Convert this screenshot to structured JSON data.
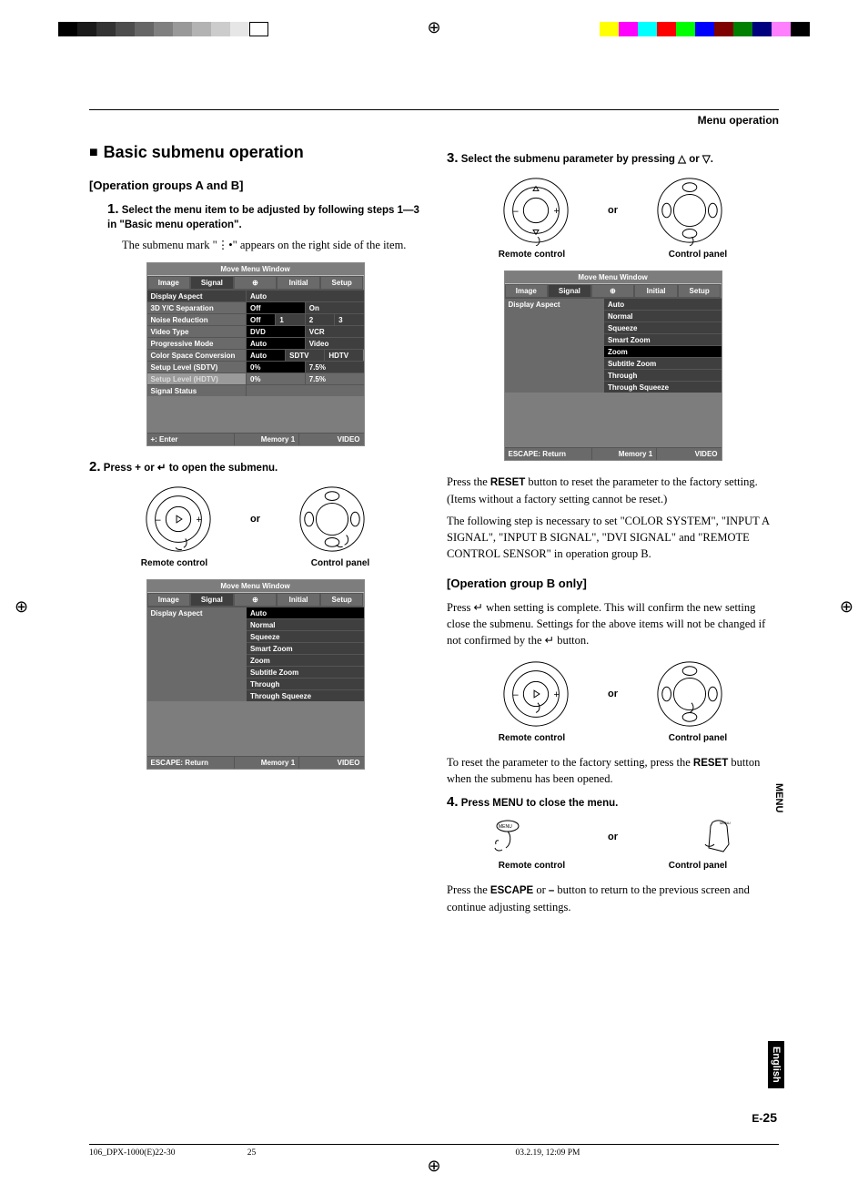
{
  "colorBarLeft": [
    "#000000",
    "#1a1a1a",
    "#333333",
    "#4d4d4d",
    "#666666",
    "#808080",
    "#999999",
    "#b3b3b3",
    "#cccccc",
    "#e6e6e6",
    "#ffffff"
  ],
  "colorBarRight": [
    "#ffff00",
    "#ff00ff",
    "#00ffff",
    "#ff0000",
    "#00ff00",
    "#0000ff",
    "#7f0000",
    "#007f00",
    "#00007f",
    "#ff7fff",
    "#000000"
  ],
  "header": {
    "section": "Menu operation"
  },
  "title": "Basic submenu operation",
  "groupA": "[Operation groups A and B]",
  "groupB": "[Operation group B only]",
  "step1": {
    "num": "1.",
    "txt": "Select the menu item to be adjusted by following steps 1—3 in \"Basic menu operation\"."
  },
  "step1_body": "The submenu mark \"⋮•\" appears on the right side of the item.",
  "step2": {
    "num": "2.",
    "txt": "Press + or ↵ to open the submenu."
  },
  "step3": {
    "num": "3.",
    "txt": "Select the submenu parameter by pressing △ or ▽."
  },
  "step3_body1_a": "Press the ",
  "step3_body1_b": "RESET",
  "step3_body1_c": " button to reset the parameter to the factory setting. (Items without a factory setting cannot be reset.)",
  "step3_body2": "The following step is necessary to set \"COLOR SYSTEM\", \"INPUT A SIGNAL\", \"INPUT B SIGNAL\", \"DVI SIGNAL\" and \"REMOTE CONTROL SENSOR\" in operation group B.",
  "groupB_body": "Press ↵ when setting is complete. This will confirm the new setting close the submenu. Settings for the above items will not be changed if not confirmed by the ↵ button.",
  "groupB_reset_a": "To reset the parameter to the factory setting, press the ",
  "groupB_reset_b": "RESET",
  "groupB_reset_c": " button when the submenu has been opened.",
  "step4": {
    "num": "4.",
    "txt": "Press MENU to close the menu."
  },
  "step4_body_a": "Press the ",
  "step4_body_b": "ESCAPE",
  "step4_body_c": " or ",
  "step4_body_d": "–",
  "step4_body_e": " button to return to the previous screen and continue adjusting settings.",
  "or": "or",
  "ctrl": {
    "remote": "Remote control",
    "panel": "Control panel"
  },
  "osd": {
    "title": "Move Menu Window",
    "tabs": [
      "Image",
      "Signal",
      "⊕",
      "Initial",
      "Setup"
    ],
    "activeTab": 1,
    "foot_enter": "+: Enter",
    "foot_escape": "ESCAPE: Return",
    "foot_mem": "Memory 1",
    "foot_vid": "VIDEO",
    "menu1_rows": [
      {
        "label": "Display Aspect",
        "hl": true,
        "cells": [
          {
            "t": "Auto",
            "on": false
          }
        ]
      },
      {
        "label": "3D Y/C Separation",
        "cells": [
          {
            "t": "Off",
            "on": true
          },
          {
            "t": "On"
          }
        ]
      },
      {
        "label": "Noise Reduction",
        "cells": [
          {
            "t": "Off",
            "on": true
          },
          {
            "t": "1"
          },
          {
            "t": "2"
          },
          {
            "t": "3"
          }
        ]
      },
      {
        "label": "Video Type",
        "cells": [
          {
            "t": "DVD",
            "on": true
          },
          {
            "t": "VCR"
          }
        ]
      },
      {
        "label": "Progressive Mode",
        "cells": [
          {
            "t": "Auto",
            "on": true
          },
          {
            "t": "Video"
          }
        ]
      },
      {
        "label": "Color Space Conversion",
        "cells": [
          {
            "t": "Auto",
            "on": true
          },
          {
            "t": "SDTV"
          },
          {
            "t": "HDTV"
          }
        ]
      },
      {
        "label": "Setup Level (SDTV)",
        "cells": [
          {
            "t": "0%",
            "on": true
          },
          {
            "t": "7.5%"
          }
        ]
      },
      {
        "label": "Setup Level (HDTV)",
        "dim": true,
        "cells": [
          {
            "t": "0%",
            "on": false,
            "gr": true
          },
          {
            "t": "7.5%",
            "gr": true
          }
        ]
      },
      {
        "label": "Signal Status",
        "cells": []
      }
    ],
    "menu2_label": "Display Aspect",
    "menu2_opts": [
      "Auto",
      "Normal",
      "Squeeze",
      "Smart Zoom",
      "Zoom",
      "Subtitle Zoom",
      "Through",
      "Through Squeeze"
    ],
    "menu2_sel": 0,
    "menu3_sel": 4
  },
  "sideTab": {
    "menu": "MENU",
    "english": "English"
  },
  "pageNum": {
    "prefix": "E-",
    "num": "25"
  },
  "footer": {
    "file": "106_DPX-1000(E)22-30",
    "pg": "25",
    "ts": "03.2.19, 12:09 PM"
  },
  "handLabel": {
    "menu": "MENU"
  }
}
